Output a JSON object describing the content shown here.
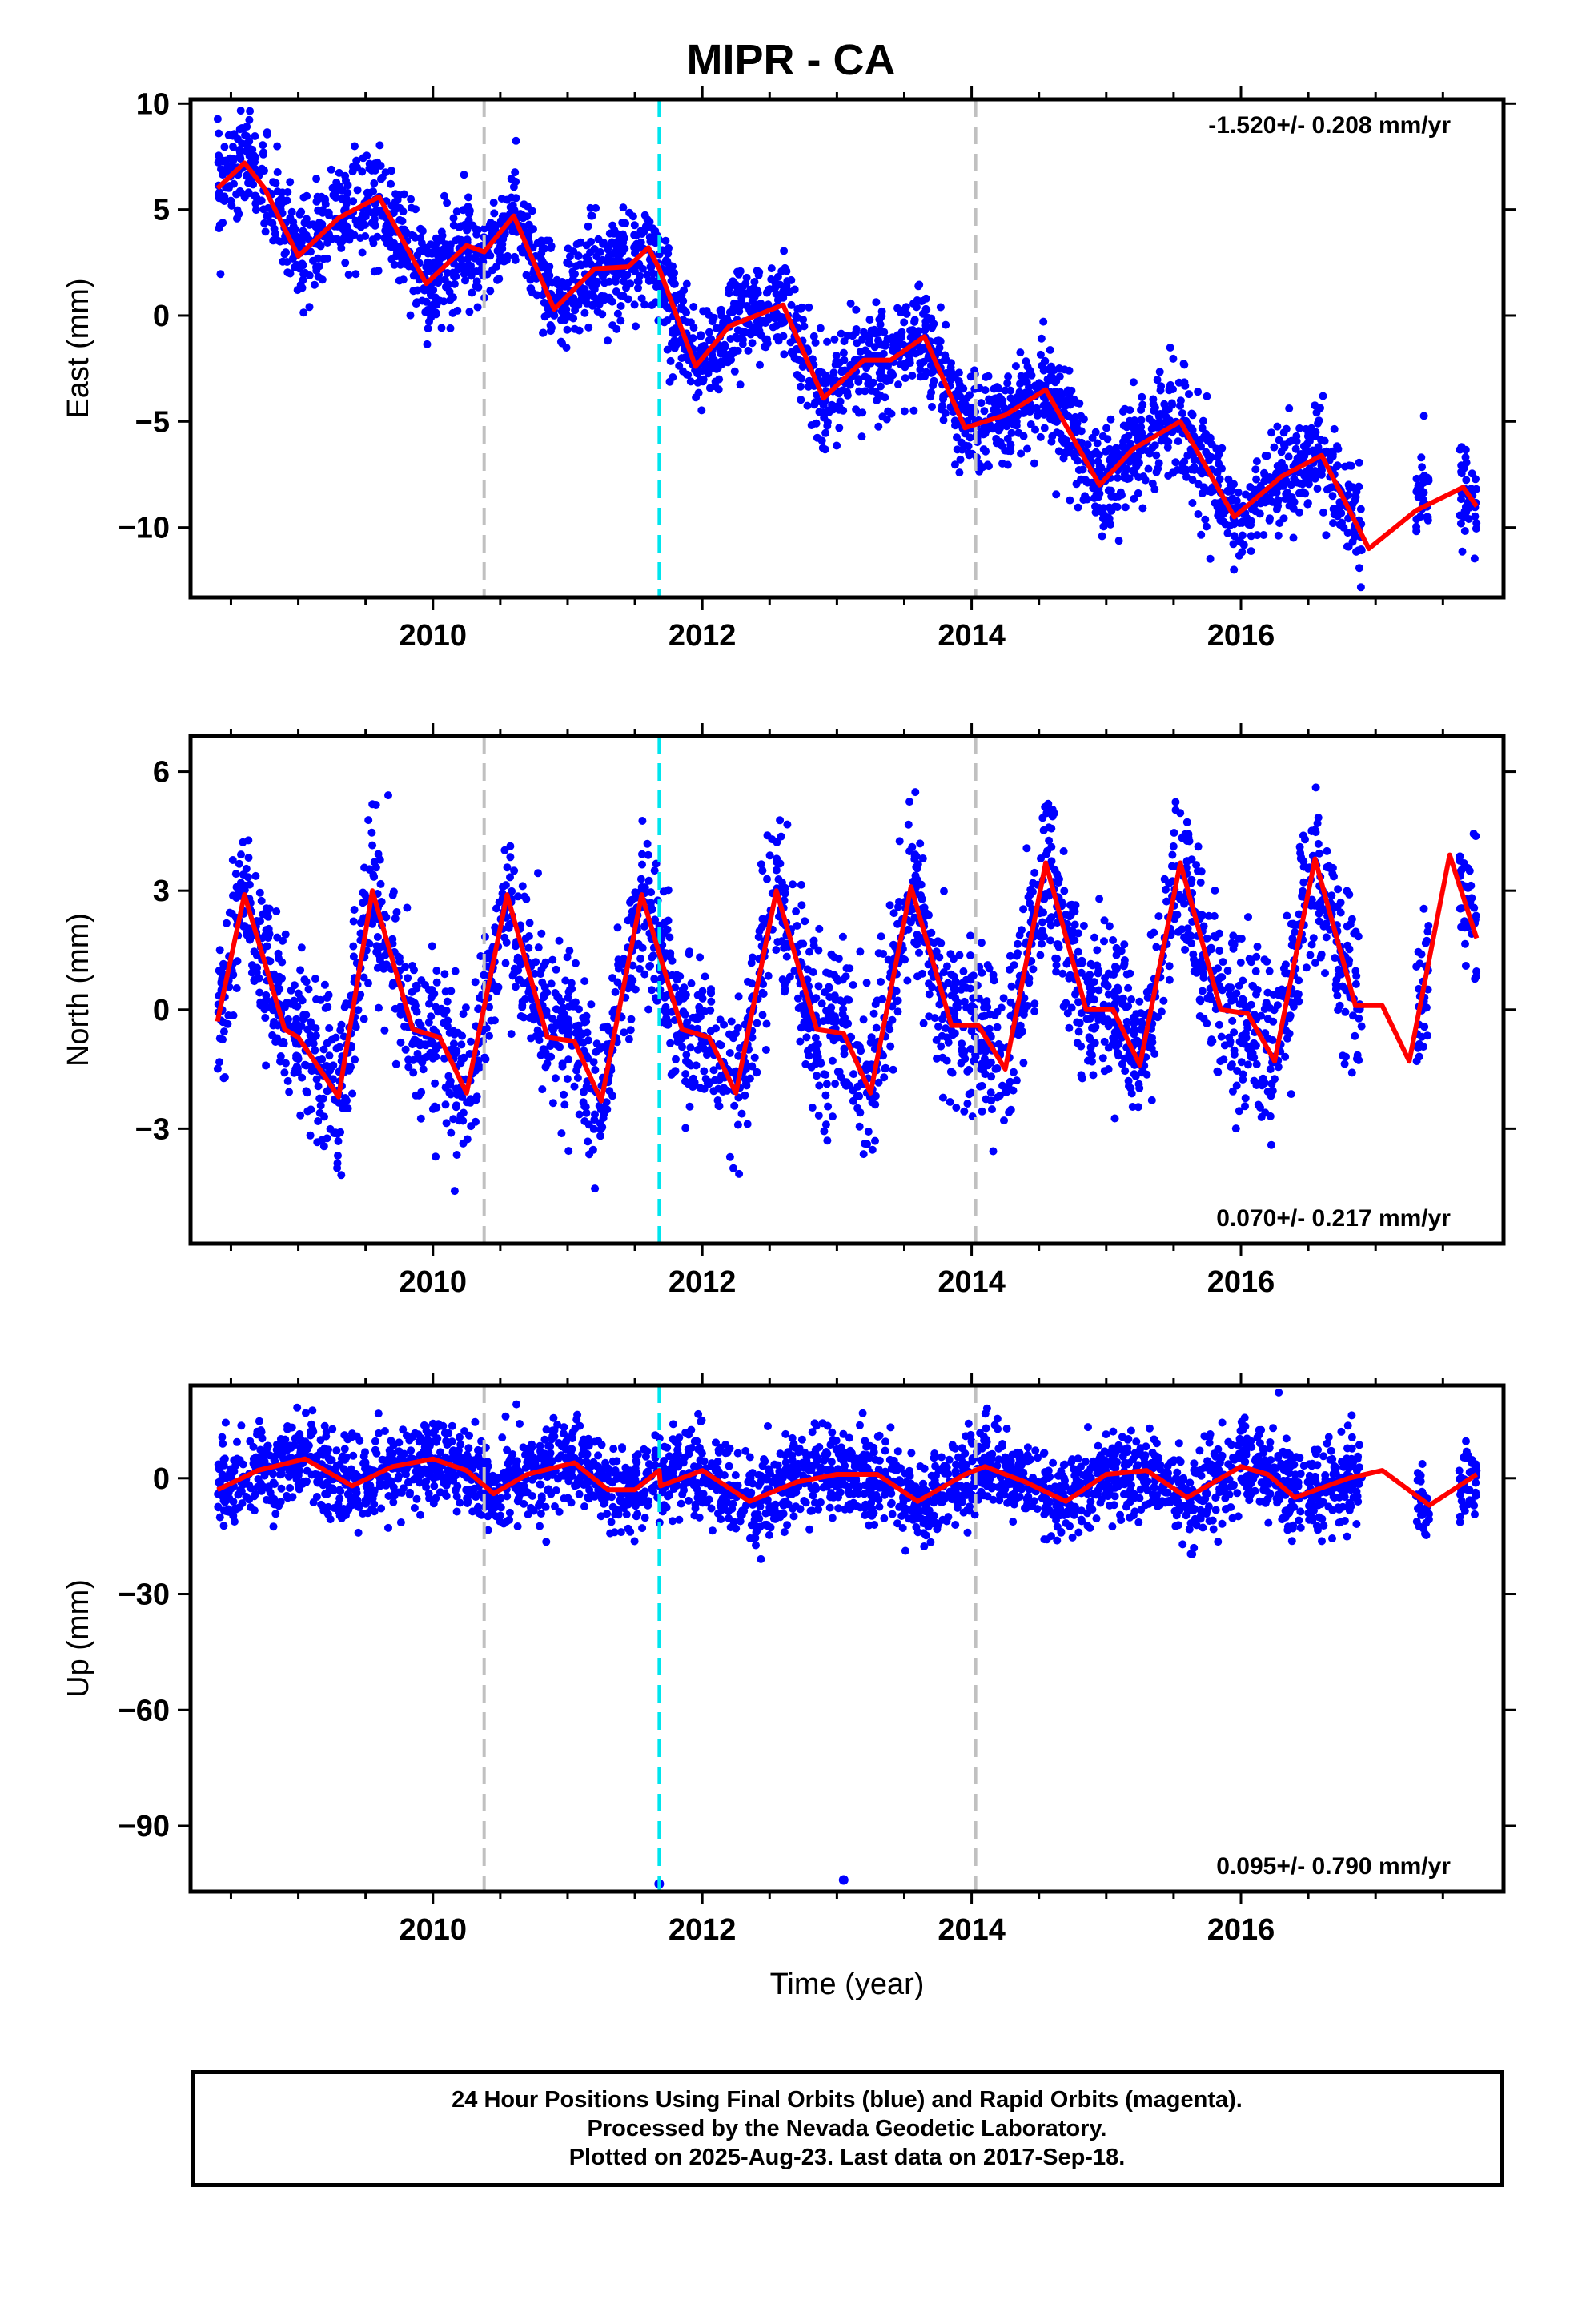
{
  "title": "MIPR - CA",
  "footer": {
    "line1": "24 Hour Positions Using Final Orbits (blue) and Rapid Orbits (magenta).",
    "line2": "Processed by the Nevada Geodetic Laboratory.",
    "line3": "Plotted on 2025-Aug-23. Last data on 2017-Sep-18."
  },
  "colors": {
    "points": "#0000ff",
    "fit": "#ff0000",
    "event_equipment": "#c0c0c0",
    "event_earthquake": "#00e5ee"
  },
  "chart_data": [
    {
      "type": "scatter",
      "ylabel": "East (mm)",
      "xlabel": "",
      "xlim": [
        2008.2,
        2017.95
      ],
      "ylim": [
        -13.3,
        10.2
      ],
      "xticks": [
        2010,
        2012,
        2014,
        2016
      ],
      "yticks": [
        10,
        5,
        0,
        -5,
        -10
      ],
      "rate_text": "-1.520+/- 0.208 mm/yr",
      "rate_pos": "top-right",
      "events": [
        {
          "x": 2010.38,
          "kind": "equipment"
        },
        {
          "x": 2011.68,
          "kind": "earthquake"
        },
        {
          "x": 2014.03,
          "kind": "equipment"
        }
      ],
      "fit_x": [
        2008.4,
        2008.6,
        2008.75,
        2009.0,
        2009.3,
        2009.6,
        2009.95,
        2010.25,
        2010.38,
        2010.6,
        2010.9,
        2011.2,
        2011.45,
        2011.6,
        2011.68,
        2011.95,
        2012.2,
        2012.6,
        2012.9,
        2013.2,
        2013.4,
        2013.65,
        2013.95,
        2014.1,
        2014.25,
        2014.55,
        2014.95,
        2015.2,
        2015.55,
        2015.95,
        2016.3,
        2016.6,
        2016.95,
        2017.3,
        2017.65,
        2017.75
      ],
      "fit_y": [
        6.0,
        7.2,
        6.0,
        2.8,
        4.6,
        5.6,
        1.5,
        3.3,
        3.0,
        4.7,
        0.3,
        2.2,
        2.3,
        3.2,
        2.2,
        -2.4,
        -0.5,
        0.5,
        -3.9,
        -2.1,
        -2.1,
        -1.0,
        -5.3,
        -5.0,
        -4.7,
        -3.5,
        -8.0,
        -6.3,
        -5.0,
        -9.5,
        -7.6,
        -6.6,
        -11.0,
        -9.2,
        -8.1,
        -9.0
      ],
      "series_name": "",
      "scatter_segments": [
        [
          2008.4,
          2010.38
        ],
        [
          2010.38,
          2011.68
        ],
        [
          2011.68,
          2014.03
        ],
        [
          2014.03,
          2016.55
        ],
        [
          2016.55,
          2016.9
        ],
        [
          2017.3,
          2017.4
        ],
        [
          2017.62,
          2017.75
        ]
      ],
      "scatter_noise": 1.2
    },
    {
      "type": "scatter",
      "ylabel": "North (mm)",
      "xlabel": "",
      "xlim": [
        2008.2,
        2017.95
      ],
      "ylim": [
        -5.9,
        6.9
      ],
      "xticks": [
        2010,
        2012,
        2014,
        2016
      ],
      "yticks": [
        6,
        3,
        0,
        -3
      ],
      "rate_text": "0.070+/- 0.217 mm/yr",
      "rate_pos": "bottom-right",
      "events": [
        {
          "x": 2010.38,
          "kind": "equipment"
        },
        {
          "x": 2011.68,
          "kind": "earthquake"
        },
        {
          "x": 2014.03,
          "kind": "equipment"
        }
      ],
      "fit_x": [
        2008.4,
        2008.6,
        2008.9,
        2009.0,
        2009.3,
        2009.55,
        2009.85,
        2010.05,
        2010.25,
        2010.55,
        2010.85,
        2011.05,
        2011.25,
        2011.55,
        2011.85,
        2012.05,
        2012.25,
        2012.55,
        2012.85,
        2013.05,
        2013.25,
        2013.55,
        2013.85,
        2014.05,
        2014.25,
        2014.55,
        2014.85,
        2015.05,
        2015.25,
        2015.55,
        2015.85,
        2016.05,
        2016.25,
        2016.55,
        2016.85,
        2017.05,
        2017.25,
        2017.55,
        2017.75
      ],
      "fit_y": [
        -0.3,
        2.9,
        -0.5,
        -0.7,
        -2.2,
        3.0,
        -0.5,
        -0.7,
        -2.1,
        2.9,
        -0.7,
        -0.8,
        -2.3,
        2.9,
        -0.5,
        -0.7,
        -2.1,
        3.0,
        -0.5,
        -0.6,
        -2.1,
        3.1,
        -0.4,
        -0.4,
        -1.5,
        3.7,
        0.0,
        0.0,
        -1.4,
        3.7,
        0.0,
        -0.1,
        -1.3,
        3.8,
        0.1,
        0.1,
        -1.3,
        3.9,
        1.8
      ],
      "series_name": "",
      "scatter_segments": [
        [
          2008.4,
          2010.38
        ],
        [
          2010.38,
          2011.68
        ],
        [
          2011.68,
          2014.03
        ],
        [
          2014.03,
          2016.55
        ],
        [
          2016.55,
          2016.9
        ],
        [
          2017.3,
          2017.4
        ],
        [
          2017.62,
          2017.75
        ]
      ],
      "scatter_noise": 1.0
    },
    {
      "type": "scatter",
      "ylabel": "Up (mm)",
      "xlabel": "Time (year)",
      "xlim": [
        2008.2,
        2017.95
      ],
      "ylim": [
        -107,
        24
      ],
      "xticks": [
        2010,
        2012,
        2014,
        2016
      ],
      "yticks": [
        0,
        -30,
        -60,
        -90
      ],
      "rate_text": "0.095+/- 0.790 mm/yr",
      "rate_pos": "bottom-right",
      "events": [
        {
          "x": 2010.38,
          "kind": "equipment"
        },
        {
          "x": 2011.68,
          "kind": "earthquake"
        },
        {
          "x": 2014.03,
          "kind": "equipment"
        }
      ],
      "fit_x": [
        2008.4,
        2008.7,
        2009.05,
        2009.4,
        2009.7,
        2010.0,
        2010.25,
        2010.45,
        2010.7,
        2011.05,
        2011.3,
        2011.5,
        2011.68,
        2011.69,
        2012.0,
        2012.35,
        2012.7,
        2013.0,
        2013.3,
        2013.6,
        2013.95,
        2014.1,
        2014.4,
        2014.7,
        2015.0,
        2015.3,
        2015.6,
        2016.0,
        2016.2,
        2016.4,
        2016.8,
        2017.05,
        2017.4,
        2017.75
      ],
      "fit_y": [
        -3,
        2,
        5,
        -2,
        3,
        5,
        2,
        -4,
        1,
        4,
        -3,
        -3,
        2,
        -2,
        2,
        -6,
        -1,
        1,
        1,
        -6,
        1,
        3,
        -1,
        -6,
        1,
        2,
        -5,
        3,
        1,
        -5,
        0,
        2,
        -7,
        1
      ],
      "series_name": "",
      "scatter_segments": [
        [
          2008.4,
          2010.38
        ],
        [
          2010.38,
          2011.68
        ],
        [
          2011.68,
          2014.03
        ],
        [
          2014.03,
          2016.55
        ],
        [
          2016.55,
          2016.9
        ],
        [
          2017.3,
          2017.4
        ],
        [
          2017.62,
          2017.75
        ]
      ],
      "scatter_noise": 5.5,
      "outliers": [
        {
          "x": 2011.68,
          "y": -105
        },
        {
          "x": 2013.05,
          "y": -104
        }
      ]
    }
  ]
}
